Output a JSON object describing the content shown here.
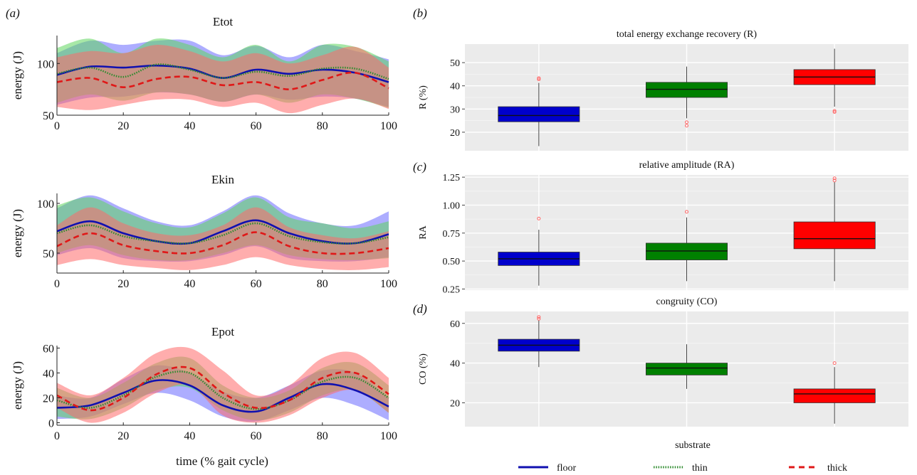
{
  "panel_labels": {
    "a": "(a)",
    "b": "(b)",
    "c": "(c)",
    "d": "(d)"
  },
  "left_panels": {
    "shared_xlabel": "time (% gait cycle)",
    "ylabel": "energy (J)",
    "xlim": [
      0,
      100
    ],
    "xticks": [
      0,
      20,
      40,
      60,
      80,
      100
    ]
  },
  "right_panels": {
    "shared_xlabel": "substrate"
  },
  "legend": {
    "entries": [
      {
        "label": "floor",
        "color": "#1010b0",
        "style": "solid"
      },
      {
        "label": "thin",
        "color": "#2e8b2e",
        "style": "dotted"
      },
      {
        "label": "thick",
        "color": "#e01818",
        "style": "dashed"
      }
    ]
  },
  "colors": {
    "floor": "#1010b0",
    "thin": "#2e8b2e",
    "thick": "#e01818",
    "box_floor": "#0000cc",
    "box_thin": "#008000",
    "box_thick": "#ff0000",
    "panel_bg": "#ebebeb",
    "outlier": "#ff6666"
  },
  "chart_data": [
    {
      "id": "Etot",
      "type": "line",
      "title": "Etot",
      "xlabel": "",
      "ylabel": "energy (J)",
      "ylim": [
        50,
        127
      ],
      "yticks": [
        50,
        100
      ],
      "xticks": [
        0,
        20,
        40,
        60,
        80,
        100
      ],
      "x": [
        0,
        10,
        20,
        30,
        40,
        50,
        60,
        70,
        80,
        90,
        100
      ],
      "series": [
        {
          "name": "floor",
          "mean": [
            89,
            97,
            96,
            98,
            95,
            86,
            94,
            90,
            94,
            91,
            82
          ],
          "upper": [
            110,
            122,
            118,
            122,
            122,
            108,
            117,
            106,
            118,
            112,
            104
          ],
          "lower": [
            60,
            67,
            68,
            72,
            70,
            63,
            70,
            65,
            68,
            66,
            58
          ]
        },
        {
          "name": "thin",
          "mean": [
            90,
            96,
            87,
            99,
            94,
            86,
            92,
            88,
            95,
            95,
            85
          ],
          "upper": [
            115,
            124,
            110,
            124,
            118,
            106,
            118,
            102,
            118,
            116,
            102
          ],
          "lower": [
            62,
            70,
            64,
            72,
            70,
            63,
            70,
            62,
            70,
            66,
            57
          ]
        },
        {
          "name": "thick",
          "mean": [
            82,
            86,
            77,
            85,
            87,
            79,
            82,
            75,
            84,
            91,
            76
          ],
          "upper": [
            106,
            112,
            110,
            118,
            112,
            102,
            110,
            100,
            108,
            116,
            96
          ],
          "lower": [
            58,
            55,
            60,
            65,
            65,
            58,
            62,
            52,
            60,
            66,
            56
          ]
        }
      ]
    },
    {
      "id": "Ekin",
      "type": "line",
      "title": "Ekin",
      "xlabel": "",
      "ylabel": "energy (J)",
      "ylim": [
        30,
        110
      ],
      "yticks": [
        50,
        100
      ],
      "xticks": [
        0,
        20,
        40,
        60,
        80,
        100
      ],
      "x": [
        0,
        10,
        20,
        30,
        40,
        50,
        60,
        70,
        80,
        90,
        100
      ],
      "series": [
        {
          "name": "floor",
          "mean": [
            72,
            82,
            70,
            62,
            60,
            72,
            83,
            70,
            62,
            60,
            69
          ],
          "upper": [
            95,
            108,
            95,
            82,
            78,
            92,
            108,
            90,
            80,
            78,
            92
          ],
          "lower": [
            48,
            55,
            45,
            42,
            42,
            48,
            57,
            45,
            42,
            42,
            46
          ]
        },
        {
          "name": "thin",
          "mean": [
            70,
            78,
            67,
            62,
            60,
            68,
            80,
            67,
            61,
            60,
            66
          ],
          "upper": [
            98,
            106,
            92,
            80,
            76,
            90,
            106,
            86,
            80,
            75,
            82
          ],
          "lower": [
            50,
            58,
            48,
            43,
            43,
            50,
            58,
            48,
            44,
            43,
            45
          ]
        },
        {
          "name": "thick",
          "mean": [
            57,
            70,
            58,
            52,
            50,
            58,
            71,
            57,
            50,
            50,
            55
          ],
          "upper": [
            78,
            96,
            80,
            70,
            68,
            78,
            96,
            76,
            68,
            65,
            72
          ],
          "lower": [
            38,
            44,
            38,
            35,
            33,
            38,
            46,
            38,
            34,
            33,
            36
          ]
        }
      ]
    },
    {
      "id": "Epot",
      "type": "line",
      "title": "Epot",
      "xlabel": "time (% gait cycle)",
      "ylabel": "energy (J)",
      "ylim": [
        -2,
        62
      ],
      "yticks": [
        0,
        20,
        40,
        60
      ],
      "xticks": [
        0,
        20,
        40,
        60,
        80,
        100
      ],
      "x": [
        0,
        10,
        20,
        30,
        40,
        50,
        60,
        70,
        80,
        90,
        100
      ],
      "series": [
        {
          "name": "floor",
          "mean": [
            12,
            14,
            24,
            34,
            30,
            14,
            9,
            20,
            31,
            26,
            13
          ],
          "upper": [
            22,
            20,
            35,
            46,
            40,
            25,
            20,
            30,
            42,
            40,
            20
          ],
          "lower": [
            3,
            5,
            15,
            24,
            18,
            5,
            1,
            10,
            20,
            14,
            2
          ]
        },
        {
          "name": "thin",
          "mean": [
            18,
            12,
            22,
            37,
            40,
            20,
            11,
            18,
            33,
            36,
            20
          ],
          "upper": [
            28,
            20,
            32,
            48,
            52,
            30,
            20,
            26,
            44,
            48,
            30
          ],
          "lower": [
            5,
            3,
            12,
            26,
            28,
            10,
            2,
            8,
            22,
            26,
            8
          ]
        },
        {
          "name": "thick",
          "mean": [
            22,
            10,
            20,
            39,
            44,
            24,
            12,
            18,
            36,
            40,
            23
          ],
          "upper": [
            32,
            22,
            36,
            56,
            60,
            42,
            22,
            30,
            52,
            56,
            36
          ],
          "lower": [
            12,
            0,
            8,
            24,
            30,
            6,
            0,
            6,
            20,
            26,
            8
          ]
        }
      ]
    },
    {
      "id": "R",
      "type": "box",
      "title": "total energy exchange recovery (R)",
      "ylabel": "R (%)",
      "ylim": [
        12,
        58
      ],
      "yticks": [
        20,
        30,
        40,
        50
      ],
      "categories": [
        "floor",
        "thin",
        "thick"
      ],
      "boxes": [
        {
          "name": "floor",
          "whisker_low": 14,
          "q1": 24.5,
          "median": 27.2,
          "q3": 31,
          "whisker_high": 41.3,
          "outliers": [
            42.8,
            43.3
          ]
        },
        {
          "name": "thin",
          "whisker_low": 26,
          "q1": 35,
          "median": 38.5,
          "q3": 41.5,
          "whisker_high": 48.3,
          "outliers": [
            22.8,
            24.3
          ]
        },
        {
          "name": "thick",
          "whisker_low": 31,
          "q1": 40.5,
          "median": 43.8,
          "q3": 47,
          "whisker_high": 56,
          "outliers": [
            28.7,
            29.2
          ]
        }
      ]
    },
    {
      "id": "RA",
      "type": "box",
      "title": "relative amplitude (RA)",
      "ylabel": "RA",
      "ylim": [
        0.24,
        1.27
      ],
      "yticks": [
        0.25,
        0.5,
        0.75,
        1.0,
        1.25
      ],
      "ytick_labels": [
        "0.25",
        "0.50",
        "0.75",
        "1.00",
        "1.25"
      ],
      "categories": [
        "floor",
        "thin",
        "thick"
      ],
      "boxes": [
        {
          "name": "floor",
          "whisker_low": 0.28,
          "q1": 0.46,
          "median": 0.52,
          "q3": 0.58,
          "whisker_high": 0.78,
          "outliers": [
            0.88
          ]
        },
        {
          "name": "thin",
          "whisker_low": 0.32,
          "q1": 0.51,
          "median": 0.59,
          "q3": 0.66,
          "whisker_high": 0.89,
          "outliers": [
            0.94
          ]
        },
        {
          "name": "thick",
          "whisker_low": 0.32,
          "q1": 0.61,
          "median": 0.7,
          "q3": 0.85,
          "whisker_high": 1.21,
          "outliers": [
            1.22,
            1.24
          ]
        }
      ]
    },
    {
      "id": "CO",
      "type": "box",
      "title": "congruity (CO)",
      "ylabel": "CO (%)",
      "ylim": [
        8,
        66
      ],
      "yticks": [
        20,
        40,
        60
      ],
      "categories": [
        "floor",
        "thin",
        "thick"
      ],
      "boxes": [
        {
          "name": "floor",
          "whisker_low": 38,
          "q1": 46,
          "median": 49,
          "q3": 52,
          "whisker_high": 61.5,
          "outliers": [
            62.3,
            63.2
          ]
        },
        {
          "name": "thin",
          "whisker_low": 27,
          "q1": 34,
          "median": 37.5,
          "q3": 40,
          "whisker_high": 49.5,
          "outliers": []
        },
        {
          "name": "thick",
          "whisker_low": 9.5,
          "q1": 20,
          "median": 24.5,
          "q3": 27,
          "whisker_high": 38,
          "outliers": [
            40
          ]
        }
      ]
    }
  ]
}
